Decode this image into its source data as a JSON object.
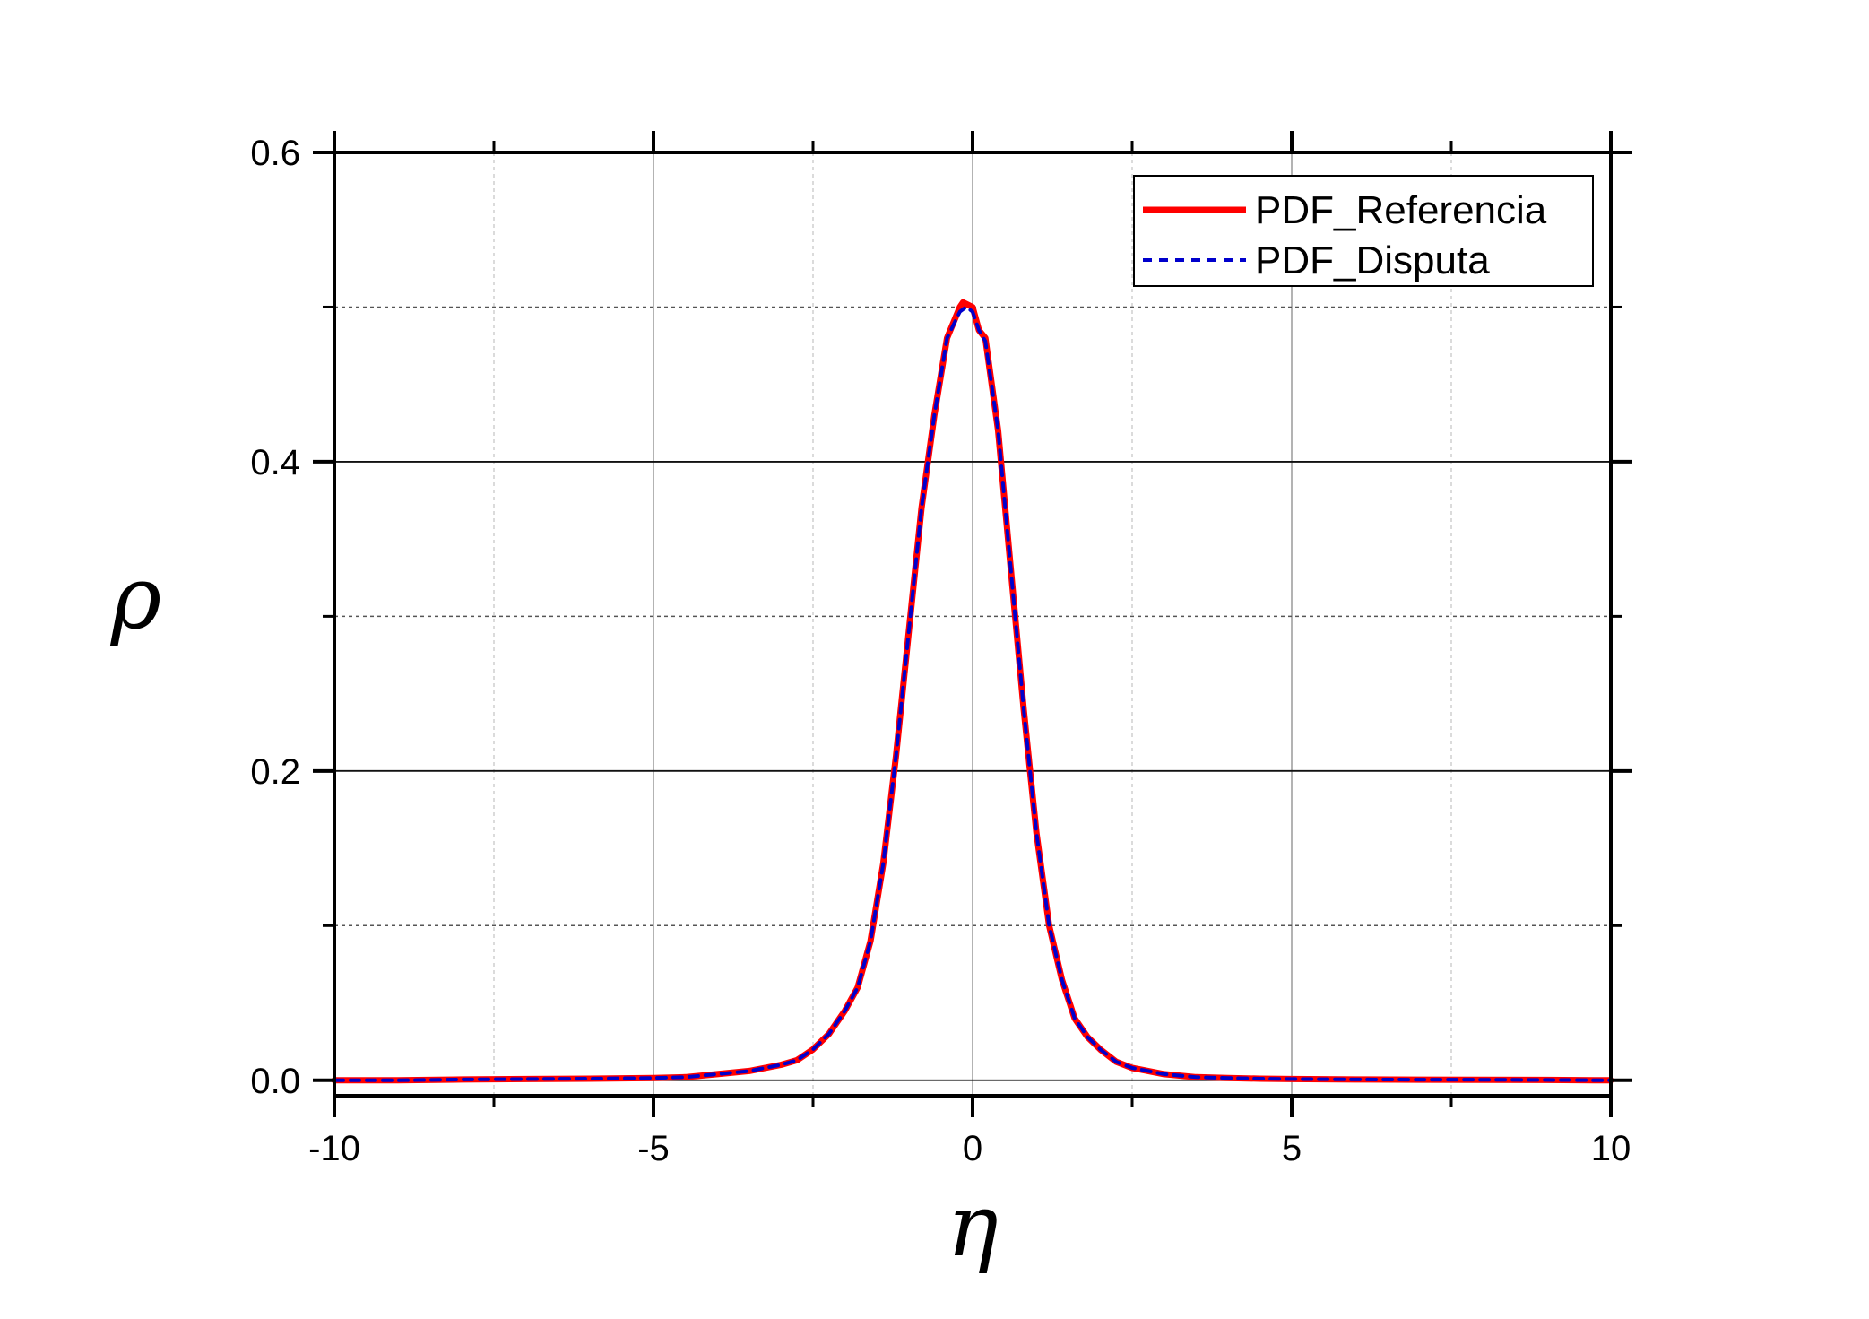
{
  "chart_data": {
    "type": "line",
    "xlabel": "η",
    "ylabel": "ρ",
    "xlim": [
      -10,
      10
    ],
    "ylim": [
      -0.01,
      0.6
    ],
    "xticks": [
      -10,
      -5,
      0,
      5,
      10
    ],
    "xtick_labels": [
      "-10",
      "-5",
      "0",
      "5",
      "10"
    ],
    "yticks": [
      0.0,
      0.2,
      0.4,
      0.6
    ],
    "ytick_labels": [
      "0.0",
      "0.2",
      "0.4",
      "0.6"
    ],
    "grid": true,
    "legend_position": "top-right",
    "series": [
      {
        "name": "PDF_Referencia",
        "color": "#ff0000",
        "style": "solid",
        "x": [
          -10,
          -9,
          -8,
          -7,
          -6,
          -5,
          -4.5,
          -4,
          -3.5,
          -3,
          -2.75,
          -2.5,
          -2.25,
          -2,
          -1.8,
          -1.6,
          -1.4,
          -1.2,
          -1.0,
          -0.8,
          -0.6,
          -0.4,
          -0.2,
          -0.15,
          0,
          0.1,
          0.2,
          0.4,
          0.6,
          0.8,
          1.0,
          1.2,
          1.4,
          1.6,
          1.8,
          2.0,
          2.25,
          2.5,
          2.75,
          3,
          3.5,
          4,
          4.5,
          5,
          6,
          7,
          8,
          9,
          10
        ],
        "values": [
          0.0,
          0.0,
          0.0005,
          0.0008,
          0.001,
          0.0015,
          0.002,
          0.004,
          0.006,
          0.01,
          0.013,
          0.02,
          0.03,
          0.045,
          0.06,
          0.09,
          0.14,
          0.21,
          0.29,
          0.37,
          0.43,
          0.48,
          0.5,
          0.503,
          0.5,
          0.485,
          0.48,
          0.42,
          0.33,
          0.24,
          0.16,
          0.1,
          0.065,
          0.04,
          0.028,
          0.02,
          0.012,
          0.008,
          0.006,
          0.004,
          0.002,
          0.0015,
          0.001,
          0.0008,
          0.0005,
          0.0004,
          0.0003,
          0.0002,
          0.0
        ]
      },
      {
        "name": "PDF_Disputa",
        "color": "#0000cc",
        "style": "dashed",
        "x": [
          -10,
          -9,
          -8,
          -7,
          -6,
          -5,
          -4.5,
          -4,
          -3.5,
          -3,
          -2.75,
          -2.5,
          -2.25,
          -2,
          -1.8,
          -1.6,
          -1.4,
          -1.2,
          -1.0,
          -0.8,
          -0.6,
          -0.4,
          -0.2,
          -0.1,
          0,
          0.1,
          0.2,
          0.4,
          0.6,
          0.8,
          1.0,
          1.2,
          1.4,
          1.6,
          1.8,
          2.0,
          2.25,
          2.5,
          2.75,
          3,
          3.5,
          4,
          4.5,
          5,
          6,
          7,
          8,
          9,
          10
        ],
        "values": [
          0.0,
          0.0,
          0.0005,
          0.0008,
          0.001,
          0.0015,
          0.002,
          0.004,
          0.006,
          0.01,
          0.013,
          0.02,
          0.03,
          0.045,
          0.06,
          0.09,
          0.14,
          0.21,
          0.29,
          0.37,
          0.43,
          0.48,
          0.497,
          0.5,
          0.497,
          0.485,
          0.478,
          0.42,
          0.33,
          0.24,
          0.16,
          0.1,
          0.065,
          0.04,
          0.028,
          0.02,
          0.012,
          0.008,
          0.006,
          0.004,
          0.002,
          0.0015,
          0.001,
          0.0008,
          0.0005,
          0.0004,
          0.0003,
          0.0002,
          0.0
        ]
      }
    ]
  }
}
